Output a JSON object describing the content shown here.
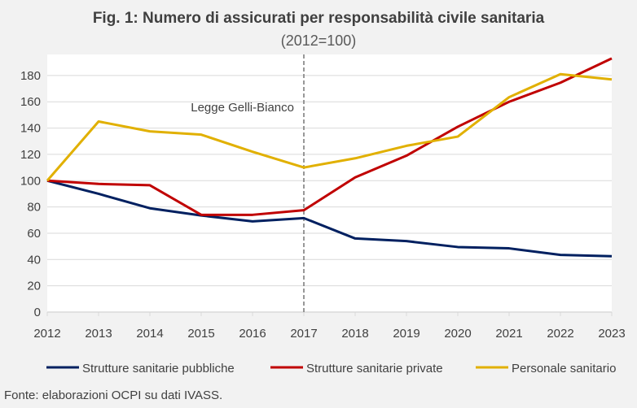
{
  "chart_data": {
    "type": "line",
    "title": "Fig. 1: Numero di assicurati per responsabilità civile sanitaria",
    "subtitle": "(2012=100)",
    "x": [
      2012,
      2013,
      2014,
      2015,
      2016,
      2017,
      2018,
      2019,
      2020,
      2021,
      2022,
      2023
    ],
    "ylim": [
      0,
      196
    ],
    "yticks": [
      0,
      20,
      40,
      60,
      80,
      100,
      120,
      140,
      160,
      180
    ],
    "grid": true,
    "legend_position": "bottom",
    "annotation": {
      "label": "Legge Gelli-Bianco",
      "x": 2017
    },
    "series": [
      {
        "name": "Strutture sanitarie pubbliche",
        "color": "#002060",
        "values": [
          100,
          90,
          79,
          73.5,
          69,
          71.5,
          56,
          54,
          49.5,
          48.5,
          43.5,
          42.5
        ]
      },
      {
        "name": "Strutture sanitarie private",
        "color": "#c00000",
        "values": [
          100,
          97.5,
          96.5,
          74,
          74,
          77.5,
          102.5,
          119,
          141,
          160,
          174.5,
          193
        ]
      },
      {
        "name": "Personale sanitario",
        "color": "#e1b000",
        "values": [
          100,
          145,
          137.5,
          135,
          122,
          110,
          117,
          126.5,
          133.5,
          163.5,
          181,
          177
        ]
      }
    ]
  },
  "source": "Fonte: elaborazioni OCPI su dati IVASS."
}
